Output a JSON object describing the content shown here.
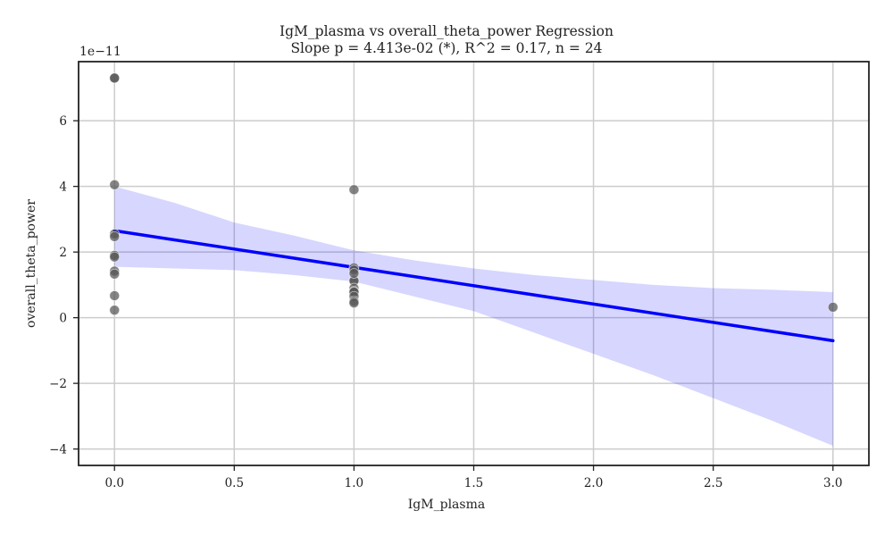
{
  "chart_data": {
    "type": "scatter",
    "title": "IgM_plasma vs overall_theta_power Regression",
    "subtitle": "Slope p = 4.413e-02 (*), R^2 = 0.17, n = 24",
    "xlabel": "IgM_plasma",
    "ylabel": "overall_theta_power",
    "y_offset_label": "1e−11",
    "xlim": [
      -0.15,
      3.15
    ],
    "ylim": [
      -4.5,
      7.8
    ],
    "x_ticks": [
      0.0,
      0.5,
      1.0,
      1.5,
      2.0,
      2.5,
      3.0
    ],
    "x_tick_labels": [
      "0.0",
      "0.5",
      "1.0",
      "1.5",
      "2.0",
      "2.5",
      "3.0"
    ],
    "y_ticks": [
      -4,
      -2,
      0,
      2,
      4,
      6
    ],
    "y_tick_labels": [
      "−4",
      "−2",
      "0",
      "2",
      "4",
      "6"
    ],
    "grid": true,
    "points": {
      "color": "#555555",
      "x": [
        0,
        0,
        0,
        0,
        0,
        0,
        0,
        0,
        0,
        0,
        0,
        1,
        1,
        1,
        1,
        1,
        1,
        1,
        1,
        1,
        1,
        1,
        1,
        3
      ],
      "y": [
        7.3,
        4.05,
        2.55,
        2.47,
        1.9,
        1.85,
        1.42,
        1.33,
        0.67,
        0.23,
        7.3,
        3.9,
        1.52,
        1.45,
        1.15,
        1.12,
        0.9,
        0.8,
        0.78,
        0.65,
        0.5,
        0.45,
        1.35,
        0.32
      ]
    },
    "regression_line": {
      "color": "#0000ff",
      "x": [
        0,
        3
      ],
      "y": [
        2.65,
        -0.7
      ]
    },
    "confidence_band": {
      "color": "#0000ff",
      "x": [
        0,
        0.25,
        0.5,
        0.75,
        1.0,
        1.25,
        1.5,
        1.75,
        2.0,
        2.25,
        2.5,
        2.75,
        3.0
      ],
      "upper": [
        4.0,
        3.5,
        2.9,
        2.5,
        2.05,
        1.75,
        1.5,
        1.3,
        1.15,
        1.0,
        0.9,
        0.85,
        0.78
      ],
      "lower": [
        1.55,
        1.5,
        1.45,
        1.3,
        1.1,
        0.65,
        0.2,
        -0.45,
        -1.1,
        -1.75,
        -2.45,
        -3.15,
        -3.9
      ]
    }
  }
}
